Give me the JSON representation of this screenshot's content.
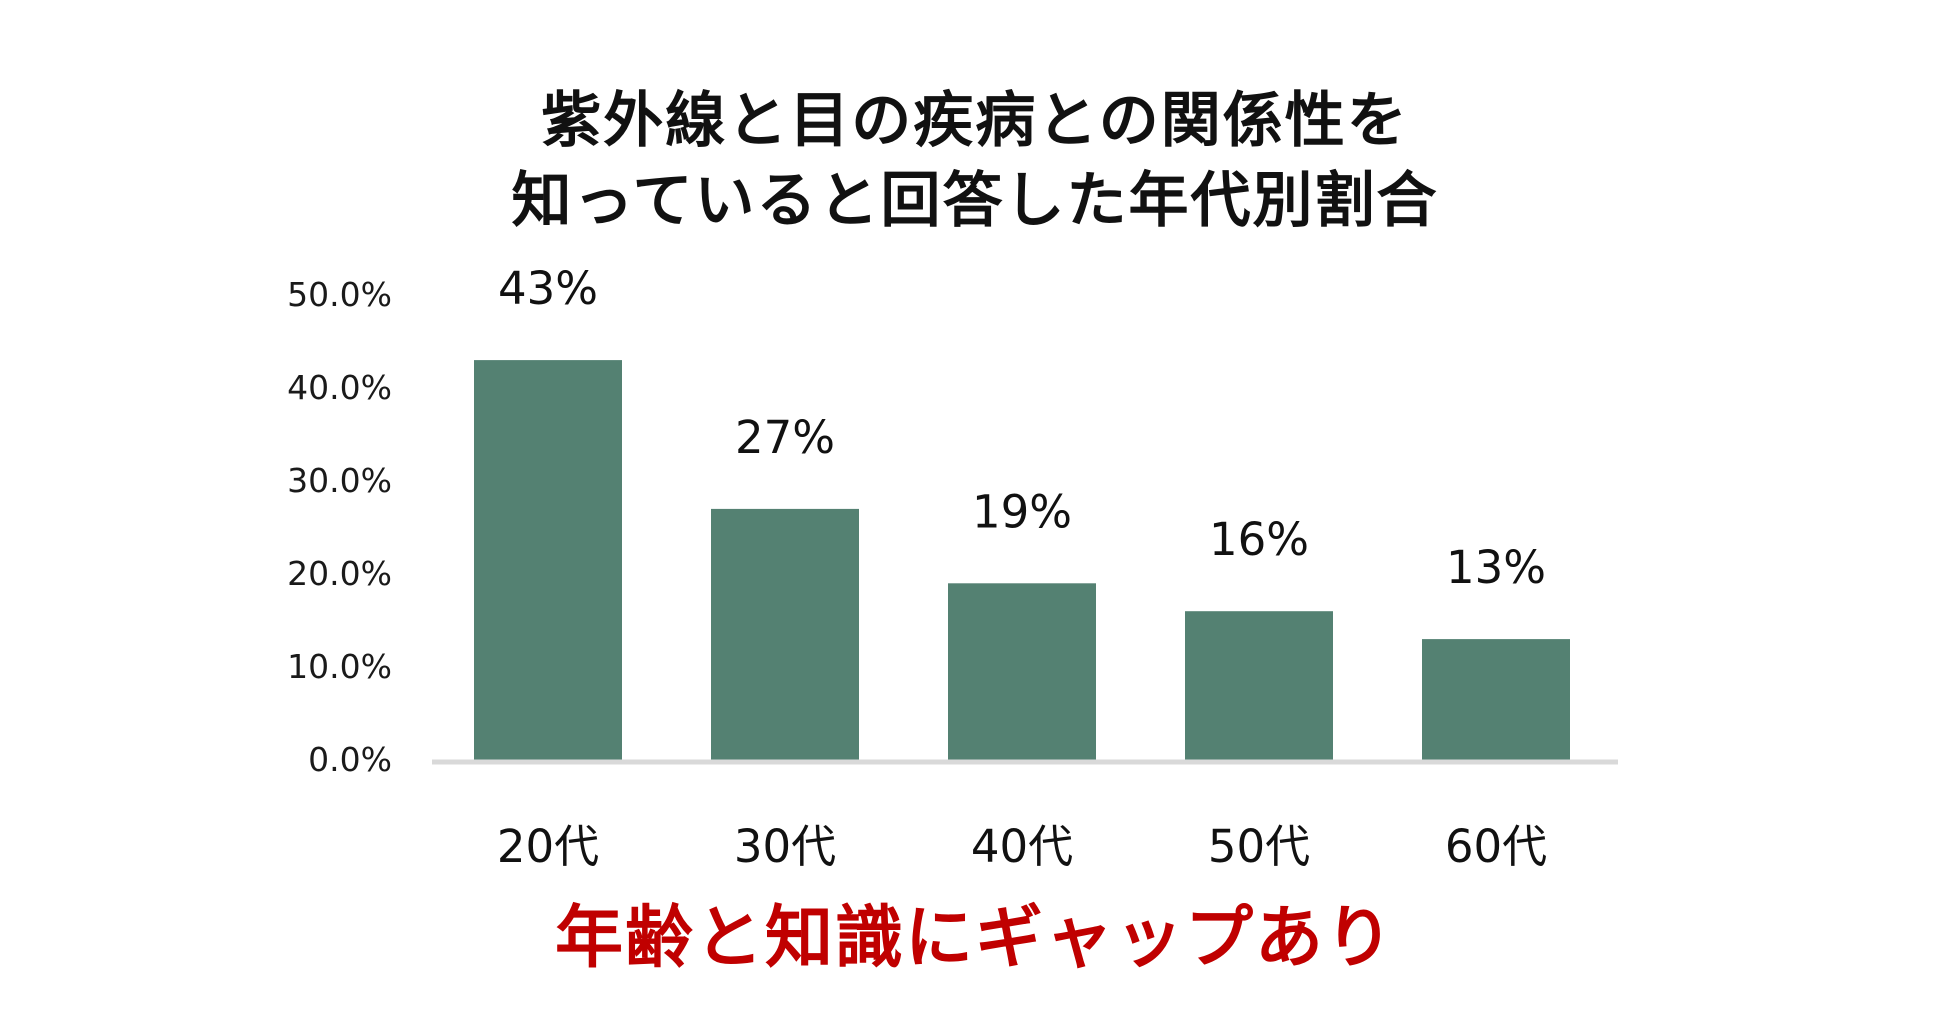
{
  "chart_data": {
    "type": "bar",
    "title_lines": [
      "紫外線と目の疾病との関係性を",
      "知っていると回答した年代別割合"
    ],
    "categories": [
      "20代",
      "30代",
      "40代",
      "50代",
      "60代"
    ],
    "values": [
      43,
      27,
      19,
      16,
      13
    ],
    "data_labels": [
      "43%",
      "27%",
      "19%",
      "16%",
      "13%"
    ],
    "y_ticks": [
      "0.0%",
      "10.0%",
      "20.0%",
      "30.0%",
      "40.0%",
      "50.0%"
    ],
    "y_tick_values": [
      0,
      10,
      20,
      30,
      40,
      50
    ],
    "ylim": [
      0,
      50
    ],
    "grid": false,
    "legend": "none",
    "bar_color": "#548172",
    "baseline_color": "#d9d9d9",
    "xlabel": "",
    "ylabel": ""
  },
  "caption": {
    "text": "年齢と知識にギャップあり",
    "color": "#c00000"
  }
}
